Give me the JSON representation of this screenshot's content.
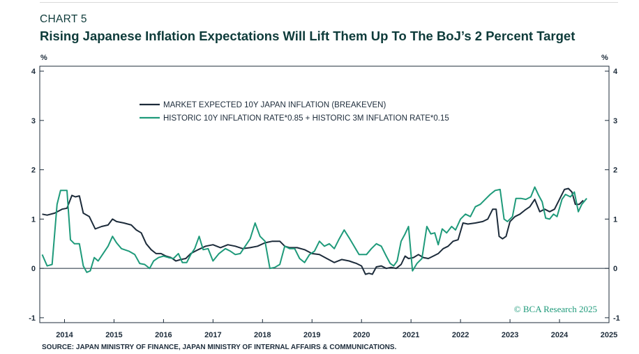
{
  "header": {
    "chart_label": "CHART 5",
    "title": "Rising Japanese Inflation Expectations Will Lift Them Up To The BoJ’s 2 Percent Target"
  },
  "footer": {
    "source": "SOURCE: JAPAN MINISTRY OF FINANCE, JAPAN MINISTRY OF INTERNAL AFFAIRS & COMMUNICATIONS.",
    "watermark": "© BCA Research 2025"
  },
  "colors": {
    "breakeven": "#1c2b3a",
    "historic": "#1e9a7a",
    "text": "#1c2b3a",
    "title": "#0e3b3a"
  },
  "chart_data": {
    "type": "line",
    "xlim": [
      2013.5,
      2025.0
    ],
    "ylim": [
      -1.1,
      4.1
    ],
    "yticks": [
      -1,
      0,
      1,
      2,
      3,
      4
    ],
    "xticks": [
      2014,
      2015,
      2016,
      2017,
      2018,
      2019,
      2020,
      2021,
      2022,
      2023,
      2024,
      2025
    ],
    "ylabel_left": "%",
    "ylabel_right": "%",
    "zero_line": true,
    "grid": false,
    "legend_position": "top-left",
    "series": [
      {
        "name": "MARKET EXPECTED 10Y JAPAN INFLATION (BREAKEVEN)",
        "color": "#1c2b3a",
        "points": [
          [
            2013.55,
            1.1
          ],
          [
            2013.65,
            1.08
          ],
          [
            2013.8,
            1.12
          ],
          [
            2013.95,
            1.2
          ],
          [
            2014.05,
            1.22
          ],
          [
            2014.15,
            1.48
          ],
          [
            2014.22,
            1.45
          ],
          [
            2014.3,
            1.47
          ],
          [
            2014.38,
            1.12
          ],
          [
            2014.5,
            1.05
          ],
          [
            2014.62,
            0.8
          ],
          [
            2014.75,
            0.85
          ],
          [
            2014.88,
            0.88
          ],
          [
            2014.97,
            1.0
          ],
          [
            2015.05,
            0.95
          ],
          [
            2015.2,
            0.92
          ],
          [
            2015.35,
            0.88
          ],
          [
            2015.45,
            0.78
          ],
          [
            2015.55,
            0.72
          ],
          [
            2015.65,
            0.5
          ],
          [
            2015.75,
            0.38
          ],
          [
            2015.85,
            0.3
          ],
          [
            2015.95,
            0.3
          ],
          [
            2016.05,
            0.25
          ],
          [
            2016.15,
            0.22
          ],
          [
            2016.25,
            0.15
          ],
          [
            2016.35,
            0.18
          ],
          [
            2016.45,
            0.2
          ],
          [
            2016.55,
            0.3
          ],
          [
            2016.7,
            0.38
          ],
          [
            2016.85,
            0.45
          ],
          [
            2017.0,
            0.48
          ],
          [
            2017.15,
            0.42
          ],
          [
            2017.3,
            0.48
          ],
          [
            2017.45,
            0.45
          ],
          [
            2017.6,
            0.4
          ],
          [
            2017.75,
            0.42
          ],
          [
            2017.9,
            0.45
          ],
          [
            2018.05,
            0.52
          ],
          [
            2018.2,
            0.55
          ],
          [
            2018.35,
            0.55
          ],
          [
            2018.45,
            0.45
          ],
          [
            2018.55,
            0.42
          ],
          [
            2018.7,
            0.42
          ],
          [
            2018.85,
            0.38
          ],
          [
            2019.0,
            0.3
          ],
          [
            2019.15,
            0.28
          ],
          [
            2019.3,
            0.2
          ],
          [
            2019.45,
            0.12
          ],
          [
            2019.6,
            0.18
          ],
          [
            2019.75,
            0.15
          ],
          [
            2019.9,
            0.1
          ],
          [
            2020.0,
            0.05
          ],
          [
            2020.08,
            -0.12
          ],
          [
            2020.15,
            -0.1
          ],
          [
            2020.22,
            -0.12
          ],
          [
            2020.3,
            0.03
          ],
          [
            2020.4,
            0.05
          ],
          [
            2020.5,
            0.0
          ],
          [
            2020.6,
            0.02
          ],
          [
            2020.7,
            0.0
          ],
          [
            2020.8,
            0.08
          ],
          [
            2020.88,
            0.25
          ],
          [
            2020.95,
            0.2
          ],
          [
            2021.05,
            0.22
          ],
          [
            2021.15,
            0.28
          ],
          [
            2021.25,
            0.22
          ],
          [
            2021.35,
            0.2
          ],
          [
            2021.45,
            0.25
          ],
          [
            2021.55,
            0.3
          ],
          [
            2021.65,
            0.4
          ],
          [
            2021.75,
            0.45
          ],
          [
            2021.85,
            0.55
          ],
          [
            2021.95,
            0.58
          ],
          [
            2022.05,
            0.92
          ],
          [
            2022.15,
            0.9
          ],
          [
            2022.3,
            0.92
          ],
          [
            2022.45,
            0.95
          ],
          [
            2022.55,
            1.0
          ],
          [
            2022.65,
            1.2
          ],
          [
            2022.72,
            1.2
          ],
          [
            2022.78,
            0.65
          ],
          [
            2022.85,
            0.6
          ],
          [
            2022.92,
            0.65
          ],
          [
            2023.0,
            0.95
          ],
          [
            2023.1,
            1.05
          ],
          [
            2023.2,
            1.1
          ],
          [
            2023.3,
            1.18
          ],
          [
            2023.4,
            1.25
          ],
          [
            2023.5,
            1.4
          ],
          [
            2023.6,
            1.15
          ],
          [
            2023.7,
            1.2
          ],
          [
            2023.8,
            1.15
          ],
          [
            2023.9,
            1.2
          ],
          [
            2024.0,
            1.4
          ],
          [
            2024.1,
            1.6
          ],
          [
            2024.18,
            1.62
          ],
          [
            2024.25,
            1.55
          ],
          [
            2024.32,
            1.3
          ],
          [
            2024.4,
            1.3
          ],
          [
            2024.48,
            1.38
          ]
        ]
      },
      {
        "name": "HISTORIC 10Y INFLATION RATE*0.85 + HISTORIC 3M INFLATION RATE*0.15",
        "color": "#1e9a7a",
        "points": [
          [
            2013.55,
            0.28
          ],
          [
            2013.65,
            0.05
          ],
          [
            2013.75,
            0.08
          ],
          [
            2013.85,
            1.3
          ],
          [
            2013.92,
            1.58
          ],
          [
            2014.05,
            1.58
          ],
          [
            2014.12,
            0.58
          ],
          [
            2014.2,
            0.5
          ],
          [
            2014.3,
            0.5
          ],
          [
            2014.38,
            0.05
          ],
          [
            2014.45,
            -0.08
          ],
          [
            2014.52,
            -0.05
          ],
          [
            2014.6,
            0.22
          ],
          [
            2014.68,
            0.15
          ],
          [
            2014.78,
            0.3
          ],
          [
            2014.88,
            0.45
          ],
          [
            2014.97,
            0.65
          ],
          [
            2015.05,
            0.52
          ],
          [
            2015.15,
            0.4
          ],
          [
            2015.3,
            0.35
          ],
          [
            2015.42,
            0.28
          ],
          [
            2015.52,
            0.1
          ],
          [
            2015.62,
            0.08
          ],
          [
            2015.72,
            0.0
          ],
          [
            2015.8,
            0.15
          ],
          [
            2015.9,
            0.22
          ],
          [
            2016.0,
            0.25
          ],
          [
            2016.1,
            0.22
          ],
          [
            2016.2,
            0.2
          ],
          [
            2016.3,
            0.3
          ],
          [
            2016.38,
            0.12
          ],
          [
            2016.47,
            0.12
          ],
          [
            2016.55,
            0.28
          ],
          [
            2016.63,
            0.4
          ],
          [
            2016.72,
            0.65
          ],
          [
            2016.8,
            0.38
          ],
          [
            2016.9,
            0.4
          ],
          [
            2017.0,
            0.15
          ],
          [
            2017.12,
            0.3
          ],
          [
            2017.25,
            0.4
          ],
          [
            2017.35,
            0.35
          ],
          [
            2017.45,
            0.28
          ],
          [
            2017.55,
            0.3
          ],
          [
            2017.65,
            0.45
          ],
          [
            2017.75,
            0.6
          ],
          [
            2017.85,
            0.92
          ],
          [
            2017.95,
            0.65
          ],
          [
            2018.05,
            0.55
          ],
          [
            2018.15,
            0.0
          ],
          [
            2018.25,
            0.02
          ],
          [
            2018.35,
            0.08
          ],
          [
            2018.45,
            0.45
          ],
          [
            2018.55,
            0.4
          ],
          [
            2018.65,
            0.4
          ],
          [
            2018.75,
            0.2
          ],
          [
            2018.85,
            0.12
          ],
          [
            2018.95,
            0.28
          ],
          [
            2019.05,
            0.35
          ],
          [
            2019.15,
            0.55
          ],
          [
            2019.25,
            0.45
          ],
          [
            2019.35,
            0.5
          ],
          [
            2019.45,
            0.4
          ],
          [
            2019.55,
            0.6
          ],
          [
            2019.65,
            0.78
          ],
          [
            2019.75,
            0.62
          ],
          [
            2019.85,
            0.45
          ],
          [
            2019.95,
            0.28
          ],
          [
            2020.1,
            0.28
          ],
          [
            2020.2,
            0.4
          ],
          [
            2020.3,
            0.5
          ],
          [
            2020.4,
            0.45
          ],
          [
            2020.5,
            0.25
          ],
          [
            2020.58,
            0.1
          ],
          [
            2020.65,
            0.05
          ],
          [
            2020.72,
            0.15
          ],
          [
            2020.8,
            0.55
          ],
          [
            2020.88,
            0.7
          ],
          [
            2020.95,
            0.85
          ],
          [
            2021.03,
            -0.05
          ],
          [
            2021.12,
            0.1
          ],
          [
            2021.22,
            0.2
          ],
          [
            2021.32,
            0.85
          ],
          [
            2021.4,
            0.7
          ],
          [
            2021.48,
            0.72
          ],
          [
            2021.55,
            0.48
          ],
          [
            2021.63,
            0.8
          ],
          [
            2021.72,
            0.72
          ],
          [
            2021.82,
            0.85
          ],
          [
            2021.9,
            0.78
          ],
          [
            2022.0,
            1.0
          ],
          [
            2022.1,
            1.1
          ],
          [
            2022.2,
            1.05
          ],
          [
            2022.3,
            1.25
          ],
          [
            2022.4,
            1.3
          ],
          [
            2022.5,
            1.4
          ],
          [
            2022.6,
            1.5
          ],
          [
            2022.7,
            1.58
          ],
          [
            2022.8,
            1.6
          ],
          [
            2022.88,
            1.0
          ],
          [
            2022.95,
            0.95
          ],
          [
            2023.05,
            1.05
          ],
          [
            2023.12,
            1.42
          ],
          [
            2023.22,
            1.42
          ],
          [
            2023.32,
            1.4
          ],
          [
            2023.42,
            1.45
          ],
          [
            2023.5,
            1.65
          ],
          [
            2023.58,
            1.48
          ],
          [
            2023.65,
            1.35
          ],
          [
            2023.72,
            1.02
          ],
          [
            2023.8,
            1.0
          ],
          [
            2023.88,
            1.1
          ],
          [
            2023.95,
            1.05
          ],
          [
            2024.05,
            1.4
          ],
          [
            2024.12,
            1.5
          ],
          [
            2024.22,
            1.45
          ],
          [
            2024.3,
            1.55
          ],
          [
            2024.38,
            1.15
          ],
          [
            2024.45,
            1.3
          ],
          [
            2024.55,
            1.42
          ]
        ]
      }
    ]
  }
}
